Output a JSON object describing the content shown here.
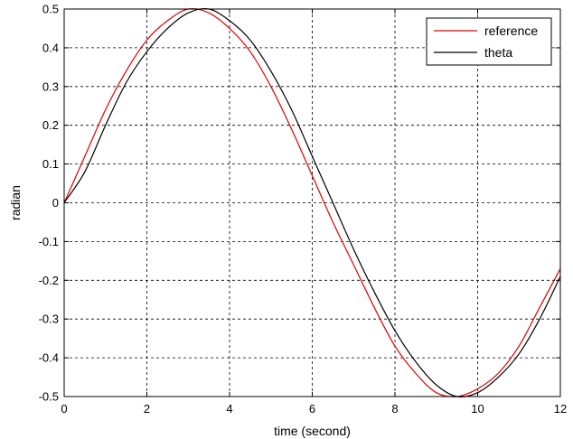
{
  "chart_data": {
    "type": "line",
    "title": "",
    "xlabel": "time (second)",
    "ylabel": "radian",
    "xlim": [
      0,
      12
    ],
    "ylim": [
      -0.5,
      0.5
    ],
    "xticks": [
      "0",
      "2",
      "4",
      "6",
      "8",
      "10",
      "12"
    ],
    "yticks": [
      "-0.5",
      "-0.4",
      "-0.3",
      "-0.2",
      "-0.1",
      "0",
      "0.1",
      "0.2",
      "0.3",
      "0.4",
      "0.5"
    ],
    "grid": true,
    "grid_style": "dashed",
    "legend_position": "top-right",
    "x": [
      0,
      0.5,
      1,
      1.5,
      2,
      2.5,
      3,
      3.5,
      4,
      4.5,
      5,
      5.5,
      6,
      6.5,
      7,
      7.5,
      8,
      8.5,
      9,
      9.5,
      10,
      10.5,
      11,
      11.5,
      12
    ],
    "series": [
      {
        "name": "reference",
        "color": "#e00000",
        "values": [
          0.0,
          0.12,
          0.24,
          0.34,
          0.42,
          0.47,
          0.5,
          0.49,
          0.45,
          0.39,
          0.3,
          0.19,
          0.07,
          -0.05,
          -0.16,
          -0.27,
          -0.37,
          -0.44,
          -0.49,
          -0.5,
          -0.48,
          -0.44,
          -0.37,
          -0.27,
          -0.17
        ]
      },
      {
        "name": "theta",
        "color": "#000000",
        "values": [
          0.0,
          0.08,
          0.2,
          0.31,
          0.39,
          0.45,
          0.49,
          0.5,
          0.47,
          0.42,
          0.34,
          0.24,
          0.12,
          0.0,
          -0.12,
          -0.23,
          -0.33,
          -0.41,
          -0.47,
          -0.5,
          -0.49,
          -0.45,
          -0.39,
          -0.3,
          -0.19
        ]
      }
    ]
  }
}
